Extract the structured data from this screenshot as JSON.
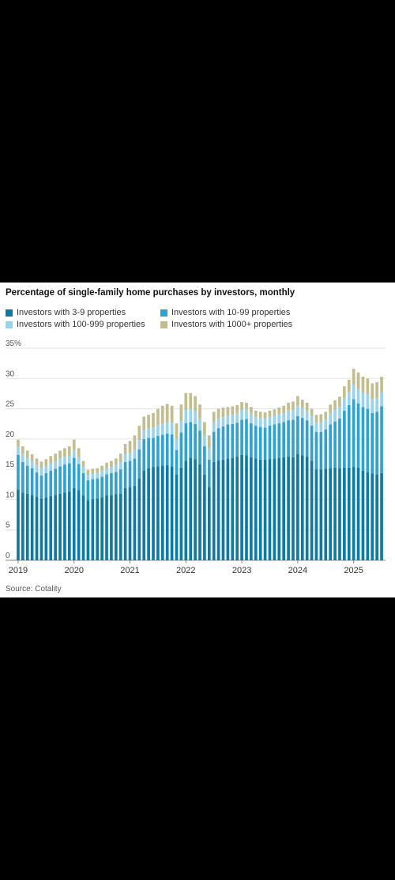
{
  "colors": {
    "s1": "#0b7aa4",
    "s2": "#2ea2d1",
    "s3": "#98d3eb",
    "s4": "#c2bd8e"
  },
  "chart_data": {
    "type": "bar",
    "stacked": true,
    "title": "Percentage of single-family home purchases by investors, monthly",
    "source": "Source: Cotality",
    "ylim": [
      0,
      35
    ],
    "y_ticks": [
      "35%",
      "30",
      "25",
      "20",
      "15",
      "10",
      "5",
      "0"
    ],
    "x_ticks": [
      "2019",
      "2020",
      "2021",
      "2022",
      "2023",
      "2024",
      "2025"
    ],
    "grid": true,
    "legend_position": "top",
    "x_start": "2019-01",
    "series": [
      {
        "name": "Investors with 3-9 properties",
        "values": [
          11.7,
          11.2,
          11.0,
          10.8,
          10.5,
          10.2,
          10.4,
          10.6,
          10.8,
          11.0,
          11.2,
          11.3,
          11.9,
          11.6,
          10.7,
          9.9,
          10.1,
          10.2,
          10.4,
          10.7,
          10.8,
          10.9,
          11.0,
          11.9,
          12.1,
          12.3,
          13.5,
          14.8,
          15.2,
          15.4,
          15.5,
          15.6,
          15.7,
          15.5,
          14.2,
          15.3,
          16.4,
          16.9,
          16.7,
          15.8,
          14.1,
          12.1,
          16.2,
          16.5,
          16.6,
          16.8,
          16.9,
          17.1,
          17.4,
          17.3,
          17.0,
          16.8,
          16.6,
          16.6,
          16.7,
          16.8,
          16.9,
          17.0,
          17.1,
          17.0,
          17.5,
          17.3,
          17.1,
          16.4,
          15.0,
          15.0,
          15.1,
          15.2,
          15.3,
          15.2,
          15.3,
          15.3,
          15.4,
          15.3,
          14.8,
          14.5,
          14.3,
          14.2,
          14.4
        ],
        "color": "#0b7aa4"
      },
      {
        "name": "Investors with 10-99 properties",
        "values": [
          5.7,
          5.0,
          4.6,
          4.4,
          4.0,
          3.8,
          4.0,
          4.2,
          4.3,
          4.5,
          4.6,
          4.7,
          5.0,
          4.3,
          3.7,
          3.3,
          3.3,
          3.3,
          3.4,
          3.5,
          3.6,
          3.7,
          4.0,
          4.3,
          4.3,
          4.5,
          4.8,
          5.2,
          5.0,
          4.8,
          5.0,
          5.1,
          5.2,
          5.3,
          4.0,
          5.8,
          6.2,
          5.9,
          5.8,
          5.6,
          4.7,
          4.5,
          5.0,
          5.3,
          5.5,
          5.6,
          5.6,
          5.6,
          5.8,
          6.0,
          5.6,
          5.4,
          5.4,
          5.3,
          5.5,
          5.6,
          5.7,
          5.8,
          6.0,
          6.2,
          6.3,
          6.2,
          6.0,
          5.8,
          6.2,
          6.2,
          6.5,
          7.2,
          7.6,
          8.2,
          9.4,
          10.3,
          11.2,
          10.6,
          10.5,
          10.5,
          10.0,
          10.3,
          11.0
        ],
        "color": "#2ea2d1"
      },
      {
        "name": "Investors with 100-999 properties",
        "values": [
          1.3,
          1.4,
          1.3,
          1.2,
          1.2,
          1.2,
          1.2,
          1.2,
          1.2,
          1.3,
          1.3,
          1.3,
          1.3,
          1.2,
          1.0,
          0.9,
          0.9,
          0.9,
          1.0,
          1.0,
          1.0,
          1.1,
          1.2,
          1.3,
          1.3,
          1.4,
          1.5,
          1.5,
          1.6,
          1.7,
          1.8,
          1.9,
          1.9,
          1.9,
          1.8,
          1.9,
          2.2,
          2.2,
          2.1,
          2.0,
          1.8,
          1.9,
          1.6,
          1.6,
          1.5,
          1.5,
          1.5,
          1.5,
          1.6,
          1.6,
          1.6,
          1.5,
          1.5,
          1.5,
          1.5,
          1.5,
          1.5,
          1.5,
          1.6,
          1.6,
          1.7,
          1.6,
          1.6,
          1.6,
          1.6,
          1.6,
          1.6,
          1.8,
          1.9,
          2.0,
          2.1,
          2.2,
          2.4,
          2.4,
          2.4,
          2.4,
          2.3,
          2.3,
          2.3
        ],
        "color": "#98d3eb"
      },
      {
        "name": "Investors with 1000+ properties",
        "values": [
          1.2,
          1.2,
          1.2,
          1.1,
          1.1,
          1.1,
          1.1,
          1.2,
          1.3,
          1.3,
          1.4,
          1.5,
          1.7,
          1.4,
          1.0,
          0.8,
          0.8,
          0.8,
          0.8,
          0.9,
          1.0,
          1.1,
          1.4,
          1.7,
          2.0,
          2.4,
          2.4,
          2.2,
          2.2,
          2.4,
          2.7,
          2.9,
          3.0,
          2.8,
          2.6,
          2.7,
          2.8,
          2.6,
          2.5,
          2.3,
          2.2,
          2.1,
          1.7,
          1.6,
          1.6,
          1.4,
          1.4,
          1.4,
          1.3,
          1.1,
          1.1,
          1.0,
          1.0,
          1.0,
          1.0,
          1.0,
          1.1,
          1.2,
          1.3,
          1.4,
          1.6,
          1.4,
          1.3,
          1.2,
          1.2,
          1.3,
          1.3,
          1.5,
          1.6,
          1.6,
          1.9,
          2.0,
          2.6,
          2.7,
          2.6,
          2.6,
          2.6,
          2.6,
          2.6
        ],
        "color": "#c2bd8e"
      }
    ]
  }
}
